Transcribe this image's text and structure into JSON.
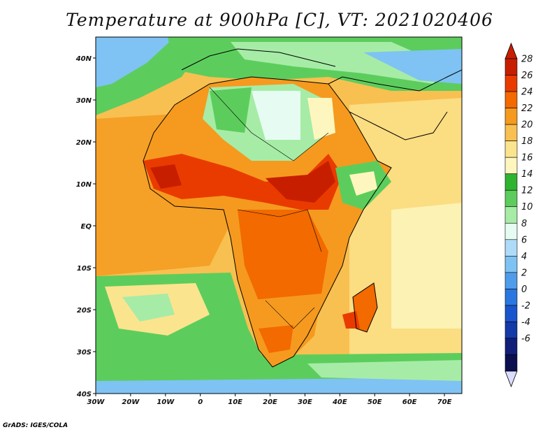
{
  "title": "Temperature at 900hPa [C], VT: 2021020406",
  "credit": "GrADS: IGES/COLA",
  "map": {
    "region": "Africa",
    "lon_range": [
      -30,
      75
    ],
    "lat_range": [
      -40,
      45
    ],
    "lon_ticks": [
      "30W",
      "20W",
      "10W",
      "0",
      "10E",
      "20E",
      "30E",
      "40E",
      "50E",
      "60E",
      "70E"
    ],
    "lat_ticks": [
      "40N",
      "30N",
      "20N",
      "10N",
      "EQ",
      "10S",
      "20S",
      "30S",
      "40S"
    ]
  },
  "colorbar": {
    "labels": [
      "28",
      "26",
      "24",
      "22",
      "20",
      "18",
      "16",
      "14",
      "12",
      "10",
      "8",
      "6",
      "4",
      "2",
      "0",
      "-2",
      "-4",
      "-6"
    ],
    "colors": [
      "#c81e00",
      "#e93b00",
      "#f26a00",
      "#f59a1e",
      "#f8c050",
      "#fbe48e",
      "#fdf7bf",
      "#2fb42f",
      "#5ccd5c",
      "#a6eca6",
      "#e6fcf3",
      "#aedcf8",
      "#7ec3f3",
      "#4f9ceb",
      "#2b77e0",
      "#1955cc",
      "#1439a8",
      "#111f78",
      "#0b0f50"
    ],
    "min_arrow_color": "#dcdcff"
  }
}
